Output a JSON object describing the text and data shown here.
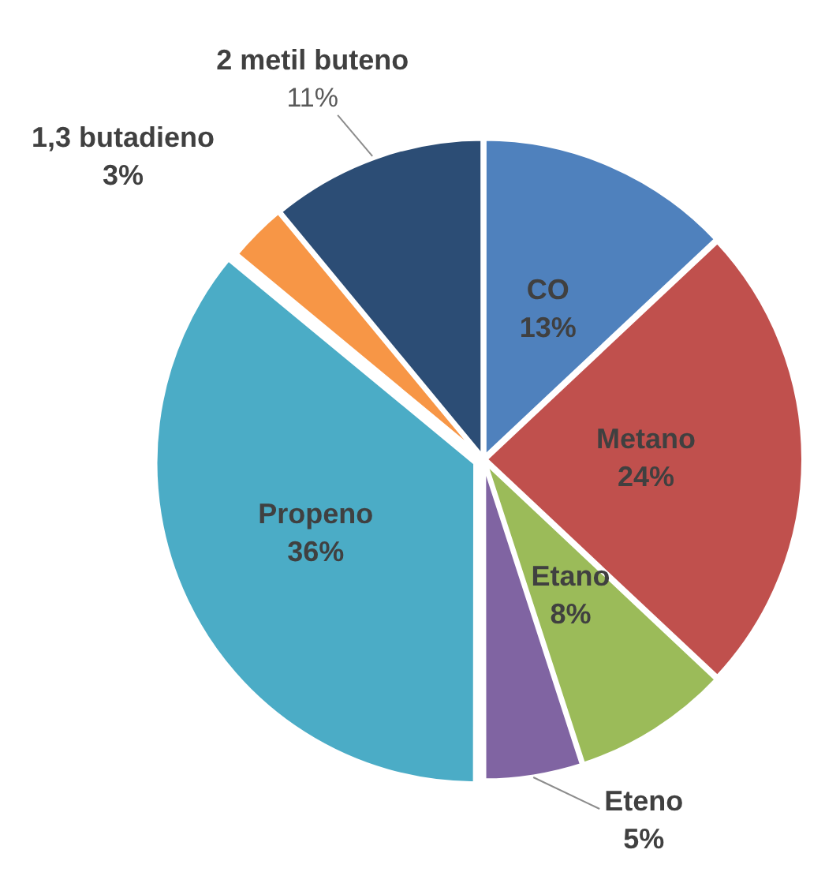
{
  "chart_data": {
    "type": "pie",
    "categories": [
      "CO",
      "Metano",
      "Etano",
      "Eteno",
      "Propeno",
      "1,3 butadieno",
      "2 metil buteno"
    ],
    "values": [
      13,
      24,
      8,
      5,
      36,
      3,
      11
    ],
    "colors": [
      "#4f81bd",
      "#c0504d",
      "#9bbb59",
      "#8064a2",
      "#4bacc6",
      "#f79646",
      "#2c4d75"
    ],
    "value_labels": [
      "13%",
      "24%",
      "8%",
      "5%",
      "36%",
      "3%",
      "11%"
    ],
    "legend": false
  }
}
